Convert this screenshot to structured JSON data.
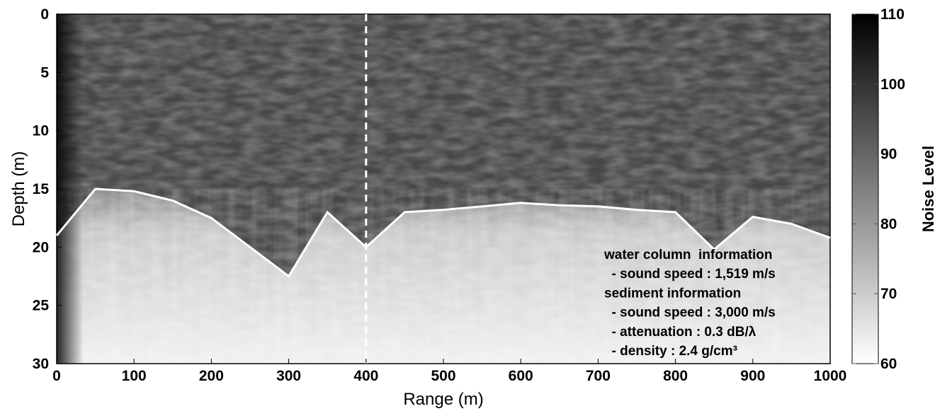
{
  "chart_data": {
    "type": "heatmap",
    "xlabel": "Range (m)",
    "ylabel": "Depth (m)",
    "xlim": [
      0,
      1000
    ],
    "ylim": [
      30,
      0
    ],
    "xticks": [
      "0",
      "100",
      "200",
      "300",
      "400",
      "500",
      "600",
      "700",
      "800",
      "900",
      "1000"
    ],
    "yticks": [
      "0",
      "5",
      "10",
      "15",
      "20",
      "25",
      "30"
    ],
    "colormap": "gray_reversed",
    "colorbar": {
      "label": "Noise Level",
      "range": [
        60,
        110
      ],
      "ticks": [
        "60",
        "70",
        "80",
        "90",
        "100",
        "110"
      ]
    },
    "bottom_profile": {
      "x": [
        0,
        50,
        100,
        150,
        200,
        250,
        300,
        350,
        400,
        450,
        500,
        550,
        600,
        650,
        700,
        750,
        800,
        850,
        900,
        950,
        1000
      ],
      "y": [
        19,
        15,
        15.2,
        16,
        17.5,
        20,
        22.5,
        17,
        20,
        17,
        16.8,
        16.5,
        16.2,
        16.4,
        16.5,
        16.8,
        17,
        20.2,
        17.4,
        18,
        19.2
      ]
    },
    "dashed_line_x": 400,
    "water_level": 96,
    "sediment_level": 63,
    "annotation": [
      "water column  information",
      "  - sound speed : 1,519 m/s",
      "sediment information",
      "  - sound speed : 3,000 m/s",
      "  - attenuation : 0.3 dB/λ",
      "  - density : 2.4 g/cm³"
    ]
  }
}
